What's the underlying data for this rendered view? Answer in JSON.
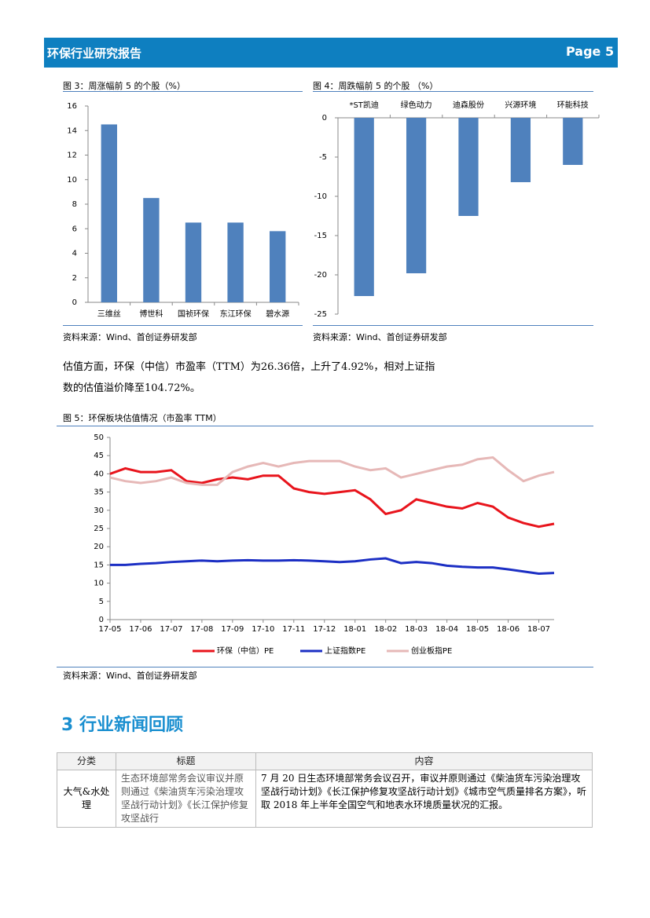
{
  "header": {
    "title": "环保行业研究报告",
    "page": "Page 5"
  },
  "chart_data": [
    {
      "type": "bar",
      "title": "图 3：周涨幅前 5 的个股（%）",
      "categories": [
        "三维丝",
        "博世科",
        "国祯环保",
        "东江环保",
        "碧水源"
      ],
      "values": [
        14.5,
        8.5,
        6.5,
        6.5,
        5.8
      ],
      "color": "#4f81bd",
      "ylim": [
        0,
        16
      ],
      "yticks": [
        0,
        2,
        4,
        6,
        8,
        10,
        12,
        14,
        16
      ]
    },
    {
      "type": "bar",
      "title": "图 4：周跌幅前 5 的个股 （%）",
      "categories": [
        "*ST凯迪",
        "绿色动力",
        "迪森股份",
        "兴源环境",
        "环能科技"
      ],
      "values": [
        -22.7,
        -19.8,
        -12.5,
        -8.2,
        -6
      ],
      "color": "#4f81bd",
      "ylim": [
        -25,
        0
      ],
      "yticks": [
        0,
        -5,
        -10,
        -15,
        -20,
        -25
      ]
    },
    {
      "type": "line",
      "title": "图 5：环保板块估值情况（市盈率 TTM）",
      "categories": [
        "17-05",
        null,
        "17-06",
        null,
        "17-07",
        null,
        "17-08",
        null,
        "17-09",
        null,
        "17-10",
        null,
        "17-11",
        null,
        "17-12",
        null,
        "18-01",
        null,
        "18-02",
        null,
        "18-03",
        null,
        "18-04",
        null,
        "18-05",
        null,
        "18-06",
        null,
        "18-07",
        null
      ],
      "ylim": [
        0,
        50
      ],
      "yticks": [
        0,
        5,
        10,
        15,
        20,
        25,
        30,
        35,
        40,
        45,
        50
      ],
      "series": [
        {
          "name": "环保（中信）PE",
          "color": "#e8141c",
          "values": [
            40,
            41.5,
            40.5,
            40.5,
            41,
            38,
            37.5,
            38.5,
            39,
            38.5,
            39.5,
            39.5,
            36,
            35,
            34.5,
            35,
            35.5,
            33,
            29,
            30,
            33,
            32,
            31,
            30.5,
            32,
            31,
            28,
            26.5,
            25.5,
            26.3
          ]
        },
        {
          "name": "上证指数PE",
          "color": "#1c2fc4",
          "values": [
            15,
            15,
            15.3,
            15.5,
            15.8,
            16,
            16.2,
            16,
            16.2,
            16.3,
            16.2,
            16.2,
            16.3,
            16.2,
            16,
            15.8,
            16,
            16.5,
            16.8,
            15.5,
            15.8,
            15.5,
            14.8,
            14.5,
            14.3,
            14.3,
            13.8,
            13.2,
            12.6,
            12.8
          ]
        },
        {
          "name": "创业板指PE",
          "color": "#e6b8b7",
          "values": [
            39,
            38,
            37.5,
            38,
            39,
            37.5,
            37,
            37,
            40.5,
            42,
            43,
            42,
            43,
            43.5,
            43.5,
            43.5,
            42,
            41,
            41.5,
            39,
            40,
            41,
            42,
            42.5,
            44,
            44.5,
            41,
            38,
            39.5,
            40.5
          ]
        }
      ]
    }
  ],
  "sources": [
    "资料来源：Wind、首创证券研发部",
    "资料来源：Wind、首创证券研发部",
    "资料来源：Wind、首创证券研发部"
  ],
  "paragraph": "估值方面，环保（中信）市盈率（TTM）为26.36倍，上升了4.92%，相对上证指数的估值溢价降至104.72%。",
  "section_title": "3  行业新闻回顾",
  "table": {
    "headers": [
      "分类",
      "标题",
      "内容"
    ],
    "rows": [
      [
        "大气&水处理",
        "生态环境部常务会议审议并原则通过《柴油货车污染治理攻坚战行动计划》《长江保护修复攻坚战行",
        "7 月 20 日生态环境部常务会议召开，审议并原则通过《柴油货车污染治理攻坚战行动计划》《长江保护修复攻坚战行动计划》《城市空气质量排名方案》，听取 2018 年上半年全国空气和地表水环境质量状况的汇报。"
      ]
    ]
  }
}
